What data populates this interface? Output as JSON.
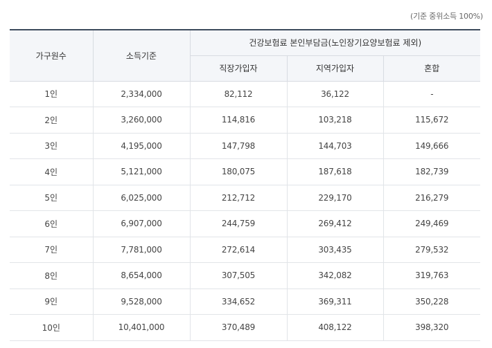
{
  "note": "(기준 중위소득 100%)",
  "headers": {
    "household": "가구원수",
    "income": "소득기준",
    "premium_group": "건강보험료 본인부담금(노인장기요양보험료 제외)",
    "employee": "직장가입자",
    "regional": "지역가입자",
    "mixed": "혼합"
  },
  "rows": [
    {
      "household": "1인",
      "income": "2,334,000",
      "employee": "82,112",
      "regional": "36,122",
      "mixed": "-"
    },
    {
      "household": "2인",
      "income": "3,260,000",
      "employee": "114,816",
      "regional": "103,218",
      "mixed": "115,672"
    },
    {
      "household": "3인",
      "income": "4,195,000",
      "employee": "147,798",
      "regional": "144,703",
      "mixed": "149,666"
    },
    {
      "household": "4인",
      "income": "5,121,000",
      "employee": "180,075",
      "regional": "187,618",
      "mixed": "182,739"
    },
    {
      "household": "5인",
      "income": "6,025,000",
      "employee": "212,712",
      "regional": "229,170",
      "mixed": "216,279"
    },
    {
      "household": "6인",
      "income": "6,907,000",
      "employee": "244,759",
      "regional": "269,412",
      "mixed": "249,469"
    },
    {
      "household": "7인",
      "income": "7,781,000",
      "employee": "272,614",
      "regional": "303,435",
      "mixed": "279,532"
    },
    {
      "household": "8인",
      "income": "8,654,000",
      "employee": "307,505",
      "regional": "342,082",
      "mixed": "319,763"
    },
    {
      "household": "9인",
      "income": "9,528,000",
      "employee": "334,652",
      "regional": "369,311",
      "mixed": "350,228"
    },
    {
      "household": "10인",
      "income": "10,401,000",
      "employee": "370,489",
      "regional": "408,122",
      "mixed": "398,320"
    }
  ]
}
